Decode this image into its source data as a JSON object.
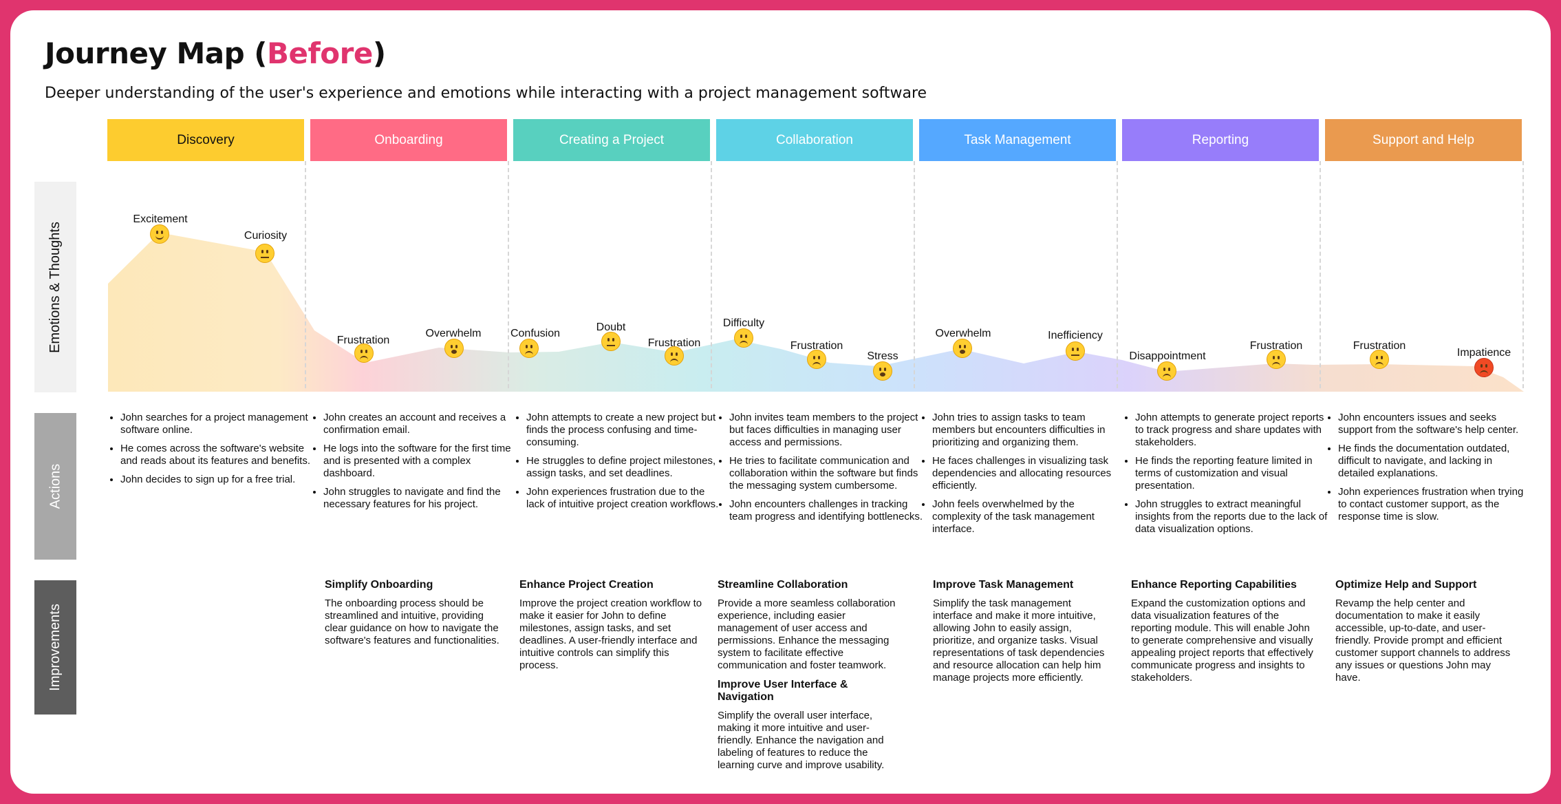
{
  "header": {
    "title_prefix": "Journey Map (",
    "title_accent": "Before",
    "title_suffix": ")",
    "subtitle": "Deeper understanding of the user's experience and emotions while interacting with a project management software"
  },
  "row_labels": {
    "emotions": "Emotions & Thoughts",
    "actions": "Actions",
    "improvements": "Improvements"
  },
  "colors": {
    "frame": "#e0346e",
    "stages": [
      "#fdcc2f",
      "#ff6b85",
      "#58d0bf",
      "#5ed2e6",
      "#55a8ff",
      "#977dfa",
      "#ea9a4f"
    ]
  },
  "stages": [
    {
      "name": "Discovery",
      "emotions": [
        {
          "label": "Excitement",
          "icon": "grinning-face-icon"
        },
        {
          "label": "Curiosity",
          "icon": "thinking-face-icon"
        }
      ],
      "actions": [
        "John searches for a project management software online.",
        "He comes across the software's website and reads about its features and benefits.",
        "John decides to sign up for a free trial."
      ],
      "improvements": []
    },
    {
      "name": "Onboarding",
      "emotions": [
        {
          "label": "Frustration",
          "icon": "steam-face-icon"
        },
        {
          "label": "Overwhelm",
          "icon": "frowning-face-icon"
        }
      ],
      "actions": [
        "John creates an account and receives a confirmation email.",
        "He logs into the software for the first time and is presented with a complex dashboard.",
        "John struggles to navigate and find the necessary features for his project."
      ],
      "improvements": [
        {
          "title": "Simplify Onboarding",
          "body": "The onboarding process should be streamlined and intuitive, providing clear guidance on how to navigate the software's features and functionalities."
        }
      ]
    },
    {
      "name": "Creating a Project",
      "emotions": [
        {
          "label": "Confusion",
          "icon": "confounded-face-icon"
        },
        {
          "label": "Doubt",
          "icon": "thinking-face-icon"
        },
        {
          "label": "Frustration",
          "icon": "steam-face-icon"
        }
      ],
      "actions": [
        "John attempts to create a new project but finds the process confusing and time-consuming.",
        "He struggles to define project milestones, assign tasks, and set deadlines.",
        "John experiences frustration due to the lack of intuitive project creation workflows."
      ],
      "improvements": [
        {
          "title": "Enhance Project Creation",
          "body": "Improve the project creation workflow to make it easier for John to define milestones, assign tasks, and set deadlines. A user-friendly interface and intuitive controls can simplify this process."
        }
      ]
    },
    {
      "name": "Collaboration",
      "emotions": [
        {
          "label": "Difficulty",
          "icon": "sweat-face-icon"
        },
        {
          "label": "Frustration",
          "icon": "steam-face-icon"
        },
        {
          "label": "Stress",
          "icon": "tired-face-icon"
        }
      ],
      "actions": [
        "John invites team members to the project but faces difficulties in managing user access and permissions.",
        "He tries to facilitate communication and collaboration within the software but finds the messaging system cumbersome.",
        "John encounters challenges in tracking team progress and identifying bottlenecks."
      ],
      "improvements": [
        {
          "title": "Streamline Collaboration",
          "body": "Provide a more seamless collaboration experience, including easier management of user access and permissions. Enhance the messaging system to facilitate effective communication and foster teamwork."
        },
        {
          "title": "Improve User Interface & Navigation",
          "body": "Simplify the overall user interface, making it more intuitive and user-friendly. Enhance the navigation and labeling of features to reduce the learning curve and improve usability."
        }
      ]
    },
    {
      "name": "Task Management",
      "emotions": [
        {
          "label": "Overwhelm",
          "icon": "frowning-face-icon"
        },
        {
          "label": "Inefficiency",
          "icon": "confused-face-icon"
        }
      ],
      "actions": [
        "John tries to assign tasks to team members but encounters difficulties in prioritizing and organizing them.",
        "He faces challenges in visualizing task dependencies and allocating resources efficiently.",
        "John feels overwhelmed by the complexity of the task management interface."
      ],
      "improvements": [
        {
          "title": "Improve Task Management",
          "body": "Simplify the task management interface and make it more intuitive, allowing John to easily assign, prioritize, and organize tasks. Visual representations of task dependencies and resource allocation can help him manage projects more efficiently."
        }
      ]
    },
    {
      "name": "Reporting",
      "emotions": [
        {
          "label": "Disappointment",
          "icon": "disappointed-face-icon"
        },
        {
          "label": "Frustration",
          "icon": "steam-face-icon"
        }
      ],
      "actions": [
        "John attempts to generate project reports to track progress and share updates with stakeholders.",
        "He finds the reporting feature limited in terms of customization and visual presentation.",
        "John struggles to extract meaningful insights from the reports due to the lack of data visualization options."
      ],
      "improvements": [
        {
          "title": "Enhance Reporting Capabilities",
          "body": "Expand the customization options and data visualization features of the reporting module. This will enable John to generate comprehensive and visually appealing project reports that effectively communicate progress and insights to stakeholders."
        }
      ]
    },
    {
      "name": "Support and Help",
      "emotions": [
        {
          "label": "Frustration",
          "icon": "steam-face-icon"
        },
        {
          "label": "Impatience",
          "icon": "angry-face-icon"
        }
      ],
      "actions": [
        "John encounters issues and seeks support from the software's help center.",
        "He finds the documentation outdated, difficult to navigate, and lacking in detailed explanations.",
        "John experiences frustration when trying to contact customer support, as the response time is slow."
      ],
      "improvements": [
        {
          "title": "Optimize Help and Support",
          "body": "Revamp the help center and documentation to make it easily accessible, up-to-date, and user-friendly. Provide prompt and efficient customer support channels to address any issues or questions John may have."
        }
      ]
    }
  ]
}
